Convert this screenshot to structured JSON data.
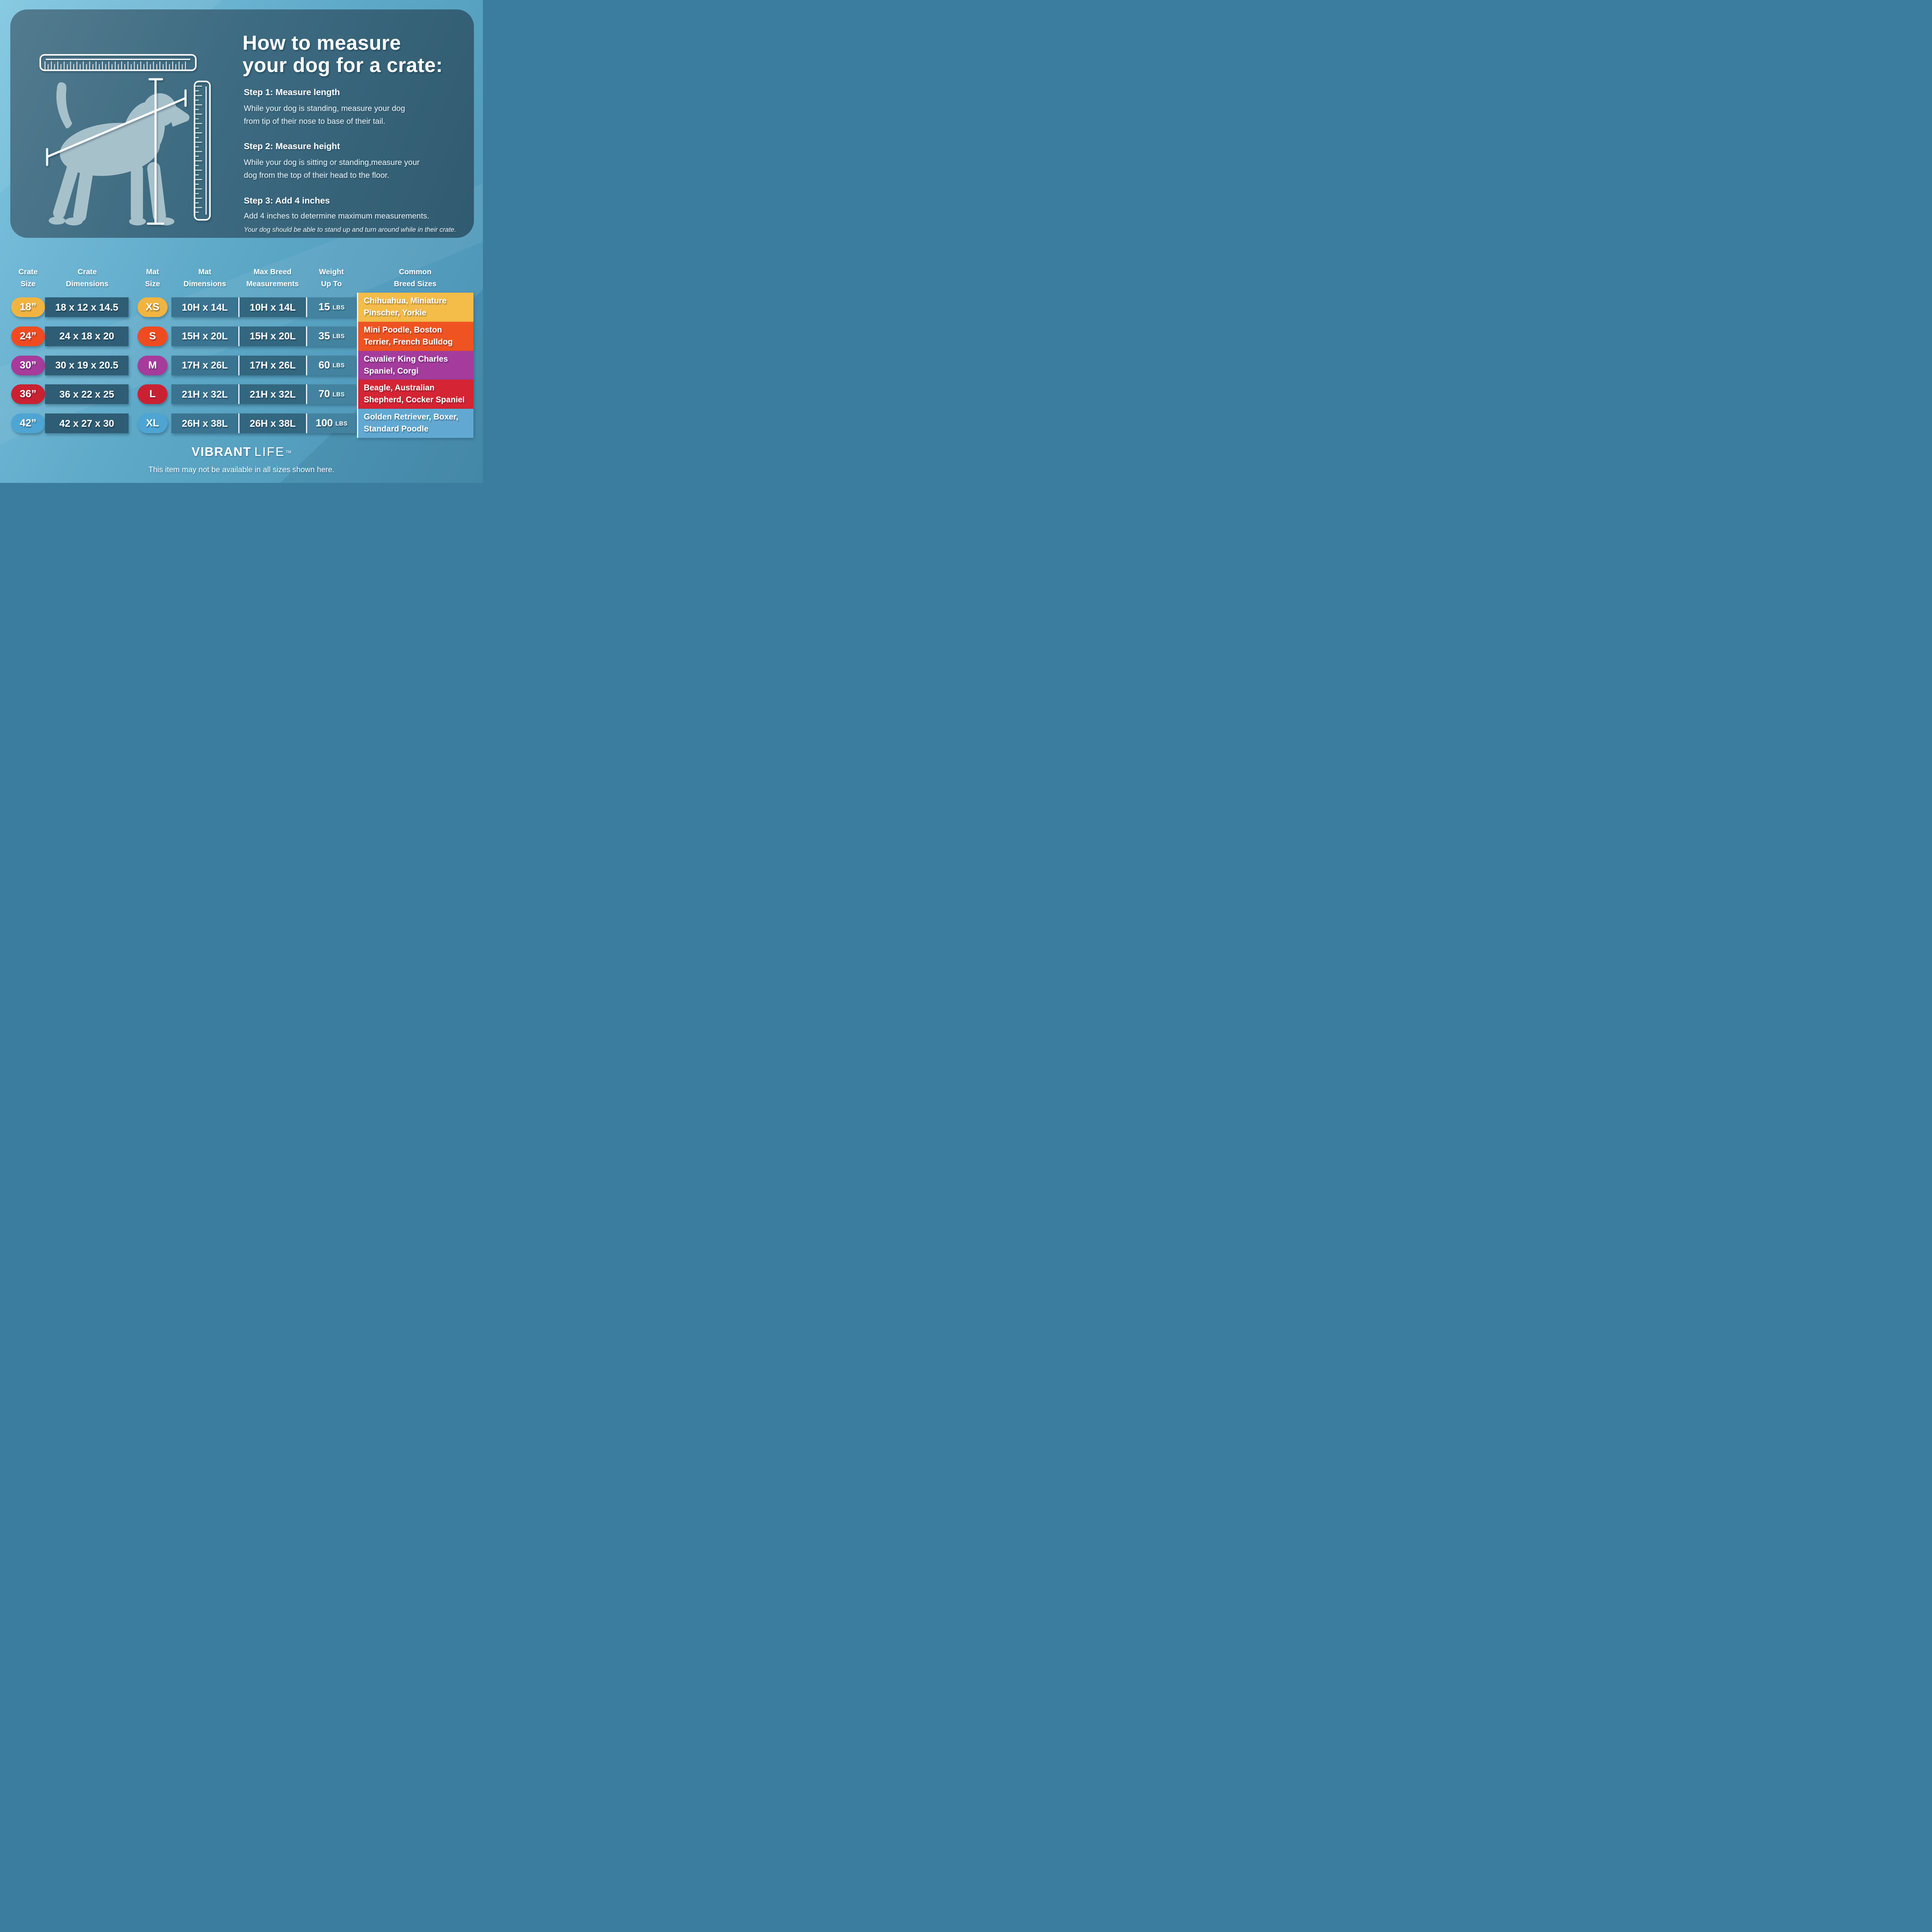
{
  "panel": {
    "title": "How to measure\nyour dog for a crate:",
    "steps": [
      {
        "heading": "Step 1: Measure length",
        "body": "While your dog is standing, measure your dog\nfrom tip of their nose to base of their tail."
      },
      {
        "heading": "Step 2: Measure height",
        "body": "While your dog is sitting or standing,measure your\ndog from the top of their head to the floor."
      },
      {
        "heading": "Step 3: Add 4 inches",
        "body": "Add 4 inches to determine maximum measurements.",
        "note": "Your dog should be able to stand up and turn around while in their crate."
      }
    ]
  },
  "table": {
    "headers": [
      "Crate\nSize",
      "Crate\nDimensions",
      "Mat\nSize",
      "Mat\nDimensions",
      "Max Breed\nMeasurements",
      "Weight\nUp To",
      "Common\nBreed Sizes"
    ],
    "rows": [
      {
        "crate_size": "18”",
        "crate_dimensions": "18 x 12 x 14.5",
        "mat_size": "XS",
        "mat_dimensions": "10H x 14L",
        "max_breed_measurements": "10H x 14L",
        "weight_value": "15",
        "weight_unit": "LBS",
        "common_breeds": "Chihuahua, Miniature\nPinscher, Yorkie",
        "accent_color": "#f2b440",
        "breed_box_color": "#f4bc49"
      },
      {
        "crate_size": "24”",
        "crate_dimensions": "24 x 18 x 20",
        "mat_size": "S",
        "mat_dimensions": "15H x 20L",
        "max_breed_measurements": "15H x 20L",
        "weight_value": "35",
        "weight_unit": "LBS",
        "common_breeds": "Mini Poodle, Boston\nTerrier, French Bulldog",
        "accent_color": "#f04b20",
        "breed_box_color": "#ef5321"
      },
      {
        "crate_size": "30”",
        "crate_dimensions": "30 x 19 x 20.5",
        "mat_size": "M",
        "mat_dimensions": "17H x 26L",
        "max_breed_measurements": "17H x 26L",
        "weight_value": "60",
        "weight_unit": "LBS",
        "common_breeds": "Cavalier King Charles\nSpaniel, Corgi",
        "accent_color": "#a63b9b",
        "breed_box_color": "#a43b9d"
      },
      {
        "crate_size": "36”",
        "crate_dimensions": "36 x 22 x 25",
        "mat_size": "L",
        "mat_dimensions": "21H x 32L",
        "max_breed_measurements": "21H x 32L",
        "weight_value": "70",
        "weight_unit": "LBS",
        "common_breeds": "Beagle, Australian\nShepherd, Cocker Spaniel",
        "accent_color": "#ca2132",
        "breed_box_color": "#d52433"
      },
      {
        "crate_size": "42”",
        "crate_dimensions": "42 x 27 x 30",
        "mat_size": "XL",
        "mat_dimensions": "26H x 38L",
        "max_breed_measurements": "26H x 38L",
        "weight_value": "100",
        "weight_unit": "LBS",
        "common_breeds": "Golden Retriever, Boxer,\nStandard Poodle",
        "accent_color": "#4ea5d3",
        "breed_box_color": "#61a9d2"
      }
    ]
  },
  "footer": {
    "brand_bold": "VIBRANT",
    "brand_light": "LIFE",
    "trademark": "TM",
    "disclaimer": "This item may not be available in all sizes shown here."
  },
  "colors": {
    "page_background_top": "#7ec6e0",
    "page_background_bottom": "#4b92b3",
    "panel_background": "#3d6b81",
    "dog_silhouette": "#a7c1cb",
    "band_crate_dimensions": "#2e5d75",
    "band_mat_dimensions": "#3a7490",
    "band_max_breed": "#336780",
    "band_weight": "#44839f",
    "text": "#ffffff"
  }
}
